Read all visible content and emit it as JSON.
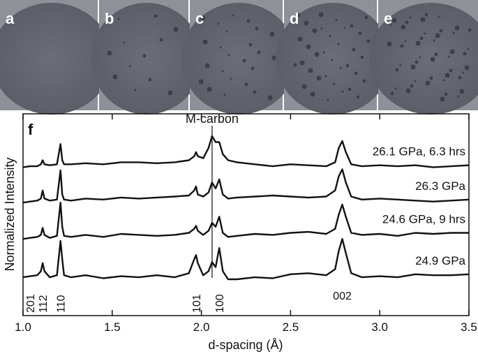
{
  "panels": [
    "a",
    "b",
    "c",
    "d",
    "e"
  ],
  "chart_data": {
    "type": "line",
    "panel_label": "f",
    "xlabel": "d-spacing (Å)",
    "ylabel": "Normalized Intensity",
    "xlim": [
      1.0,
      3.5
    ],
    "ylim": [
      0,
      10
    ],
    "xticks": [
      {
        "value": 1.0,
        "label": "1.0"
      },
      1.5,
      {
        "value": 2.0,
        "label": "2.0"
      },
      2.5,
      {
        "value": 3.0,
        "label": "3.0"
      },
      3.5
    ],
    "reference_line": {
      "label": "M-carbon",
      "x": 2.06
    },
    "peak_labels": [
      {
        "label": "201",
        "x": 1.04,
        "vertical": true
      },
      {
        "label": "112",
        "x": 1.11,
        "vertical": true
      },
      {
        "label": "110",
        "x": 1.21,
        "vertical": true
      },
      {
        "label": "101",
        "x": 1.97,
        "vertical": true
      },
      {
        "label": "100",
        "x": 2.1,
        "vertical": true
      },
      {
        "label": "002",
        "x": 2.79,
        "vertical": false
      }
    ],
    "x": [
      1.0,
      1.04,
      1.08,
      1.1,
      1.11,
      1.12,
      1.15,
      1.19,
      1.21,
      1.22,
      1.23,
      1.27,
      1.35,
      1.45,
      1.55,
      1.65,
      1.75,
      1.85,
      1.93,
      1.96,
      1.97,
      1.98,
      2.01,
      2.04,
      2.06,
      2.08,
      2.1,
      2.12,
      2.15,
      2.2,
      2.3,
      2.4,
      2.5,
      2.6,
      2.7,
      2.75,
      2.77,
      2.79,
      2.81,
      2.84,
      2.9,
      3.0,
      3.1,
      3.2,
      3.3,
      3.4,
      3.5
    ],
    "series": [
      {
        "name": "26.1 GPa, 6.3 hrs",
        "color": "#111111",
        "values": [
          7.35,
          7.4,
          7.4,
          7.5,
          7.7,
          7.5,
          7.45,
          7.5,
          8.5,
          7.7,
          7.5,
          7.5,
          7.55,
          7.5,
          7.6,
          7.6,
          7.55,
          7.6,
          7.7,
          7.9,
          8.1,
          7.9,
          7.8,
          8.3,
          8.9,
          8.6,
          8.6,
          8.0,
          7.7,
          7.6,
          7.5,
          7.4,
          7.5,
          7.45,
          7.4,
          7.6,
          8.3,
          8.65,
          8.1,
          7.5,
          7.4,
          7.45,
          7.4,
          7.45,
          7.35,
          7.4,
          7.45
        ]
      },
      {
        "name": "26.3 GPa",
        "color": "#111111",
        "values": [
          5.6,
          5.65,
          5.7,
          5.8,
          6.2,
          5.8,
          5.7,
          5.75,
          7.2,
          6.0,
          5.75,
          5.7,
          5.8,
          5.75,
          5.85,
          5.8,
          5.85,
          5.9,
          5.95,
          6.2,
          6.4,
          6.0,
          5.9,
          6.1,
          6.6,
          6.3,
          6.75,
          6.0,
          5.8,
          5.85,
          5.9,
          5.95,
          5.9,
          5.85,
          5.9,
          6.2,
          6.9,
          7.25,
          6.6,
          5.9,
          5.75,
          5.8,
          5.75,
          5.7,
          5.65,
          5.7,
          5.75
        ]
      },
      {
        "name": "24.6 GPa, 9 hrs",
        "color": "#111111",
        "values": [
          3.8,
          3.85,
          3.9,
          4.0,
          4.35,
          4.0,
          3.85,
          3.95,
          5.6,
          4.4,
          3.95,
          3.9,
          4.0,
          3.9,
          4.05,
          4.0,
          3.95,
          4.0,
          4.1,
          4.3,
          4.45,
          4.2,
          4.0,
          4.2,
          4.6,
          4.4,
          4.9,
          4.1,
          3.9,
          3.95,
          4.05,
          4.0,
          4.1,
          4.15,
          4.05,
          4.3,
          5.0,
          5.5,
          4.9,
          4.1,
          4.0,
          4.05,
          3.95,
          4.1,
          4.05,
          4.1,
          4.1
        ]
      },
      {
        "name": "24.9 GPa",
        "color": "#111111",
        "values": [
          1.9,
          1.95,
          2.0,
          2.2,
          2.6,
          2.2,
          1.9,
          2.0,
          3.7,
          2.8,
          2.0,
          1.9,
          2.0,
          1.85,
          1.95,
          1.9,
          2.0,
          1.9,
          2.1,
          2.8,
          3.0,
          2.6,
          2.0,
          2.2,
          2.65,
          2.4,
          3.35,
          2.2,
          1.8,
          1.8,
          1.9,
          1.85,
          2.05,
          2.1,
          2.0,
          2.3,
          3.2,
          3.8,
          3.1,
          2.1,
          1.9,
          1.95,
          1.9,
          2.05,
          2.0,
          2.0,
          2.05
        ]
      }
    ]
  }
}
